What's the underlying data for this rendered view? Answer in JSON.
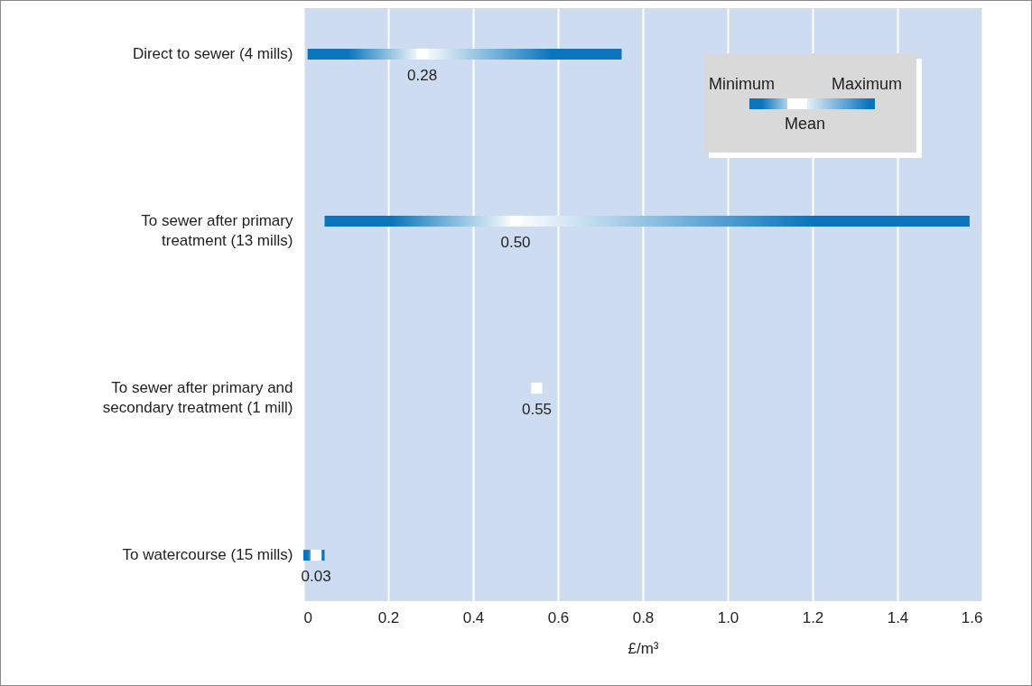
{
  "chart_data": {
    "type": "bar",
    "orientation": "horizontal",
    "xlabel": "£/m³",
    "categories": [
      "Direct to sewer (4 mills)",
      "To sewer after primary treatment (13 mills)",
      "To sewer after primary and secondary treatment (1 mill)",
      "To watercourse (15 mills)"
    ],
    "series": [
      {
        "color": "#0a75bd",
        "base": [
          0.01,
          0.05,
          null,
          0
        ],
        "values": [
          0.74,
          1.52,
          null,
          0.05
        ]
      },
      {
        "type": "scatter",
        "name": "Mean",
        "color": "#ffffff",
        "marker": "square",
        "values": [
          0.28,
          0.5,
          0.55,
          0.03
        ],
        "value_labels": [
          "0.28",
          "0.50",
          "0.55",
          "0.03"
        ]
      }
    ],
    "xlim": [
      0,
      1.6
    ],
    "xticks": [
      0,
      0.2,
      0.4,
      0.6,
      0.8,
      {
        "value": 1,
        "label": "1.0"
      },
      1.2,
      1.4,
      1.6
    ],
    "grid": "x",
    "legend": "top right",
    "annotations": [
      "Minimum",
      "Maximum"
    ]
  }
}
